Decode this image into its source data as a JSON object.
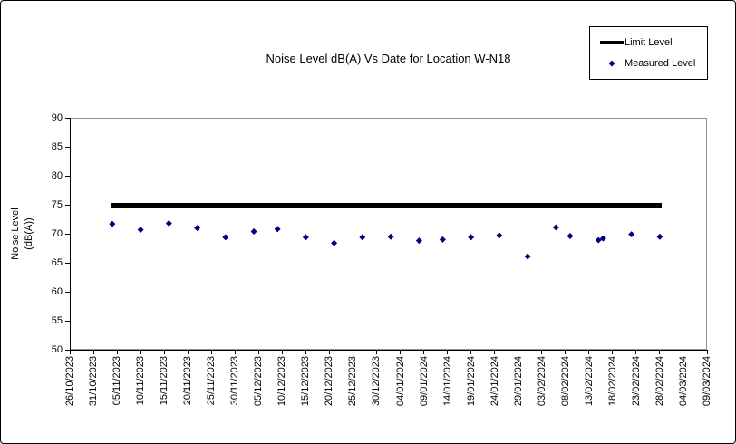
{
  "frame": {
    "background": "#ffffff",
    "border_color": "#000000"
  },
  "chart_data": {
    "type": "scatter",
    "title": "Noise Level dB(A) Vs Date for Location W-N18",
    "ylabel_lines": [
      "Noise Level",
      "(dB(A))"
    ],
    "xlabel": "",
    "ylim": [
      50,
      90
    ],
    "yticks": [
      90,
      85,
      80,
      75,
      70,
      65,
      60,
      55,
      50
    ],
    "grid": "off",
    "legend": {
      "position": "top-right"
    },
    "x_axis": {
      "total_days": 135,
      "tick_day_offsets": [
        0,
        5,
        10,
        15,
        20,
        25,
        30,
        35,
        40,
        45,
        50,
        55,
        60,
        65,
        70,
        75,
        80,
        85,
        90,
        95,
        100,
        105,
        110,
        115,
        120,
        125,
        130,
        135
      ],
      "tick_labels": [
        "26/10/2023",
        "31/10/2023",
        "05/11/2023",
        "10/11/2023",
        "15/11/2023",
        "20/11/2023",
        "25/11/2023",
        "30/11/2023",
        "05/12/2023",
        "10/12/2023",
        "15/12/2023",
        "20/12/2023",
        "25/12/2023",
        "30/12/2023",
        "04/01/2024",
        "09/01/2024",
        "14/01/2024",
        "19/01/2024",
        "24/01/2024",
        "29/01/2024",
        "03/02/2024",
        "08/02/2024",
        "13/02/2024",
        "18/02/2024",
        "23/02/2024",
        "28/02/2024",
        "04/03/2024",
        "09/03/2024"
      ]
    },
    "series": [
      {
        "name": "Limit Level",
        "type": "line",
        "color": "#000000",
        "value": 75,
        "span_days": [
          9,
          125
        ]
      },
      {
        "name": "Measured Level",
        "type": "scatter",
        "color": "#000080",
        "points": [
          {
            "date": "04/11/2023",
            "day": 9,
            "value": 71.7
          },
          {
            "date": "10/11/2023",
            "day": 15,
            "value": 70.7
          },
          {
            "date": "16/11/2023",
            "day": 21,
            "value": 71.8
          },
          {
            "date": "22/11/2023",
            "day": 27,
            "value": 71.0
          },
          {
            "date": "28/11/2023",
            "day": 33,
            "value": 69.4
          },
          {
            "date": "04/12/2023",
            "day": 39,
            "value": 70.4
          },
          {
            "date": "09/12/2023",
            "day": 44,
            "value": 70.8
          },
          {
            "date": "15/12/2023",
            "day": 50,
            "value": 69.4
          },
          {
            "date": "21/12/2023",
            "day": 56,
            "value": 68.4
          },
          {
            "date": "27/12/2023",
            "day": 62,
            "value": 69.4
          },
          {
            "date": "02/01/2024",
            "day": 68,
            "value": 69.5
          },
          {
            "date": "08/01/2024",
            "day": 74,
            "value": 68.8
          },
          {
            "date": "13/01/2024",
            "day": 79,
            "value": 69.0
          },
          {
            "date": "19/01/2024",
            "day": 85,
            "value": 69.4
          },
          {
            "date": "25/01/2024",
            "day": 91,
            "value": 69.7
          },
          {
            "date": "31/01/2024",
            "day": 97,
            "value": 66.1
          },
          {
            "date": "06/02/2024",
            "day": 103,
            "value": 71.1
          },
          {
            "date": "09/02/2024",
            "day": 106,
            "value": 69.6
          },
          {
            "date": "15/02/2024",
            "day": 112,
            "value": 68.9
          },
          {
            "date": "16/02/2024",
            "day": 113,
            "value": 69.2
          },
          {
            "date": "22/02/2024",
            "day": 119,
            "value": 69.9
          },
          {
            "date": "28/02/2024",
            "day": 125,
            "value": 69.5
          }
        ]
      }
    ]
  }
}
